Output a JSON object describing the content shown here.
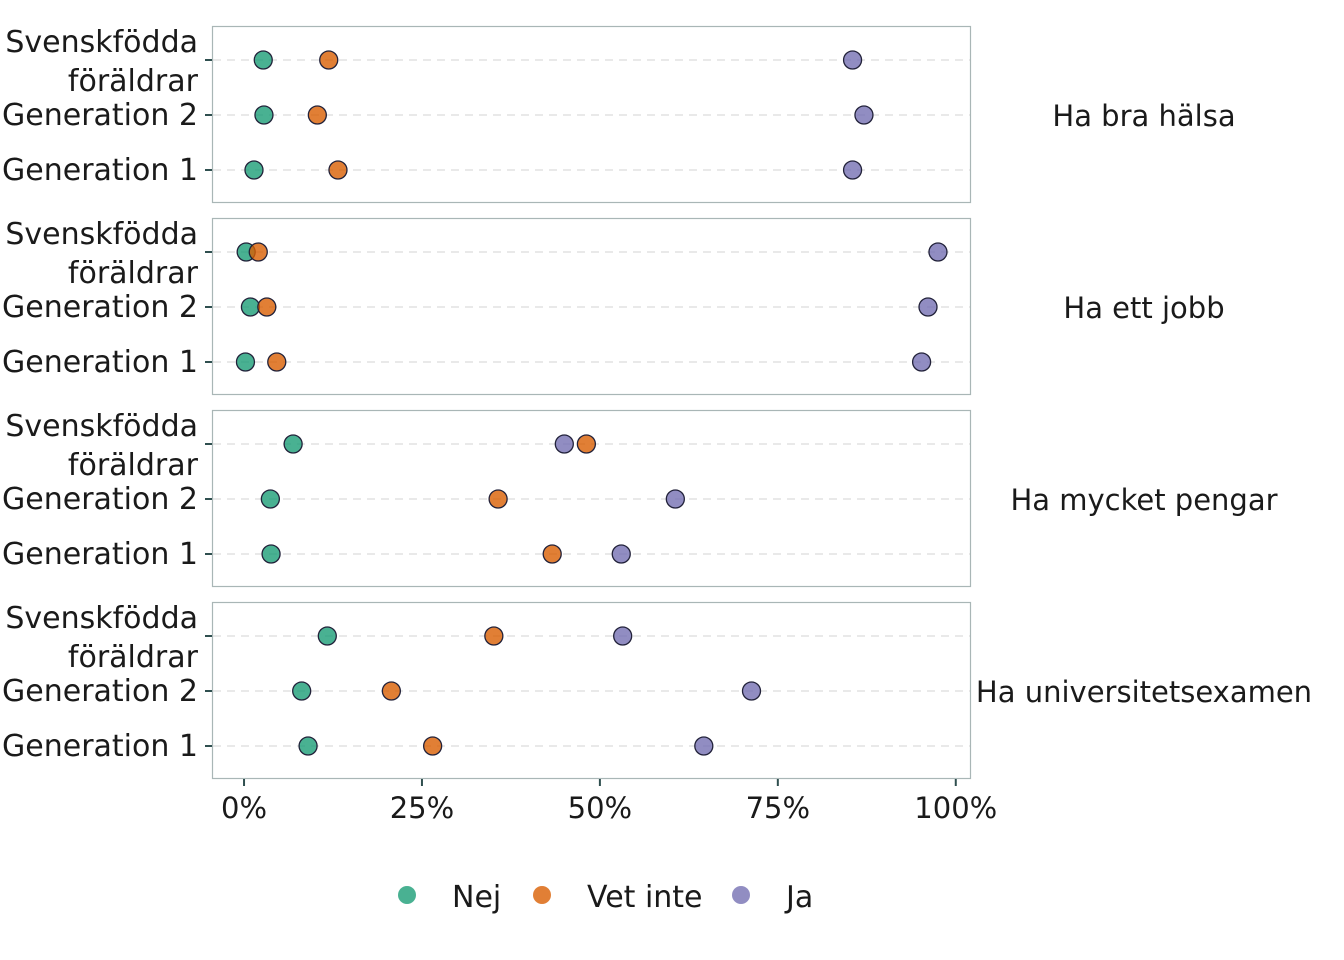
{
  "chart_data": {
    "type": "scatter",
    "x_range": [
      -0.045,
      1.02
    ],
    "x_ticks": [
      {
        "value": 0,
        "label": "0%"
      },
      {
        "value": 0.25,
        "label": "25%"
      },
      {
        "value": 0.5,
        "label": "50%"
      },
      {
        "value": 0.75,
        "label": "75%"
      },
      {
        "value": 1.0,
        "label": "100%"
      }
    ],
    "categories": [
      "Svenskfödda föräldrar",
      "Generation 2",
      "Generation 1"
    ],
    "category_labels": [
      [
        "Svenskfödda",
        "föräldrar"
      ],
      [
        "Generation 2"
      ],
      [
        "Generation 1"
      ]
    ],
    "grid": "dashed horizontal",
    "legend_position": "bottom",
    "series": [
      {
        "name": "Nej",
        "color": "#1B9E77"
      },
      {
        "name": "Vet inte",
        "color": "#D95F02"
      },
      {
        "name": "Ja",
        "color": "#7570B3"
      }
    ],
    "panels": [
      {
        "label": "Ha bra hälsa",
        "values": {
          "Nej": [
            0.027,
            0.028,
            0.014
          ],
          "Vet inte": [
            0.119,
            0.103,
            0.132
          ],
          "Ja": [
            0.855,
            0.871,
            0.855
          ]
        }
      },
      {
        "label": "Ha ett jobb",
        "values": {
          "Nej": [
            0.003,
            0.009,
            0.002
          ],
          "Vet inte": [
            0.02,
            0.032,
            0.046
          ],
          "Ja": [
            0.975,
            0.961,
            0.952
          ]
        }
      },
      {
        "label": "Ha mycket pengar",
        "values": {
          "Nej": [
            0.069,
            0.037,
            0.038
          ],
          "Vet inte": [
            0.481,
            0.357,
            0.433
          ],
          "Ja": [
            0.45,
            0.606,
            0.53
          ]
        }
      },
      {
        "label": "Ha universitetsexamen",
        "values": {
          "Nej": [
            0.117,
            0.081,
            0.09
          ],
          "Vet inte": [
            0.351,
            0.207,
            0.265
          ],
          "Ja": [
            0.532,
            0.713,
            0.646
          ]
        }
      }
    ]
  }
}
